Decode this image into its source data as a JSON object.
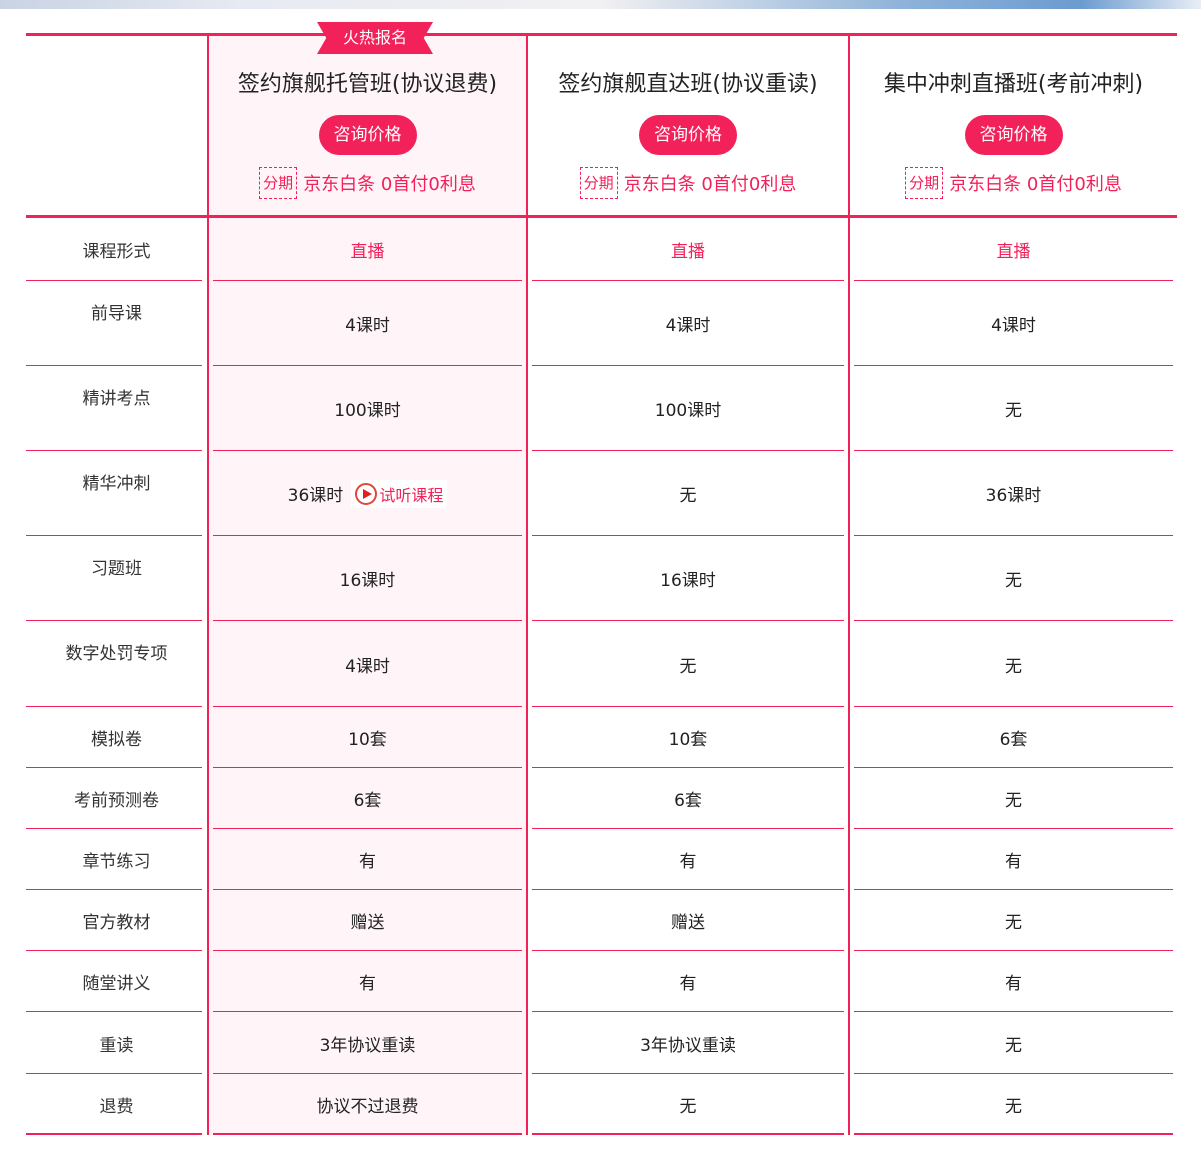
{
  "colors": {
    "accent": "#f2215a",
    "highlight_bg": "#fff5f8"
  },
  "hot_badge": "火热报名",
  "plans": [
    {
      "title": "签约旗舰托管班(协议退费)",
      "button": "咨询价格",
      "installment_tag": "分期",
      "installment_text": "京东白条 0首付0利息"
    },
    {
      "title": "签约旗舰直达班(协议重读)",
      "button": "咨询价格",
      "installment_tag": "分期",
      "installment_text": "京东白条 0首付0利息"
    },
    {
      "title": "集中冲刺直播班(考前冲刺)",
      "button": "咨询价格",
      "installment_tag": "分期",
      "installment_text": "京东白条 0首付0利息"
    }
  ],
  "trial": {
    "icon": "play-circle-icon",
    "label": "试听课程"
  },
  "rows": [
    {
      "label": "课程形式",
      "values": [
        "直播",
        "直播",
        "直播"
      ]
    },
    {
      "label": "前导课",
      "values": [
        "4课时",
        "4课时",
        "4课时"
      ]
    },
    {
      "label": "精讲考点",
      "values": [
        "100课时",
        "100课时",
        "无"
      ]
    },
    {
      "label": "精华冲刺",
      "values": [
        "36课时",
        "无",
        "36课时"
      ]
    },
    {
      "label": "习题班",
      "values": [
        "16课时",
        "16课时",
        "无"
      ]
    },
    {
      "label": "数字处罚专项",
      "values": [
        "4课时",
        "无",
        "无"
      ]
    },
    {
      "label": "模拟卷",
      "values": [
        "10套",
        "10套",
        "6套"
      ]
    },
    {
      "label": "考前预测卷",
      "values": [
        "6套",
        "6套",
        "无"
      ]
    },
    {
      "label": "章节练习",
      "values": [
        "有",
        "有",
        "有"
      ]
    },
    {
      "label": "官方教材",
      "values": [
        "赠送",
        "赠送",
        "无"
      ]
    },
    {
      "label": "随堂讲义",
      "values": [
        "有",
        "有",
        "有"
      ]
    },
    {
      "label": "重读",
      "values": [
        "3年协议重读",
        "3年协议重读",
        "无"
      ]
    },
    {
      "label": "退费",
      "values": [
        "协议不过退费",
        "无",
        "无"
      ]
    }
  ]
}
